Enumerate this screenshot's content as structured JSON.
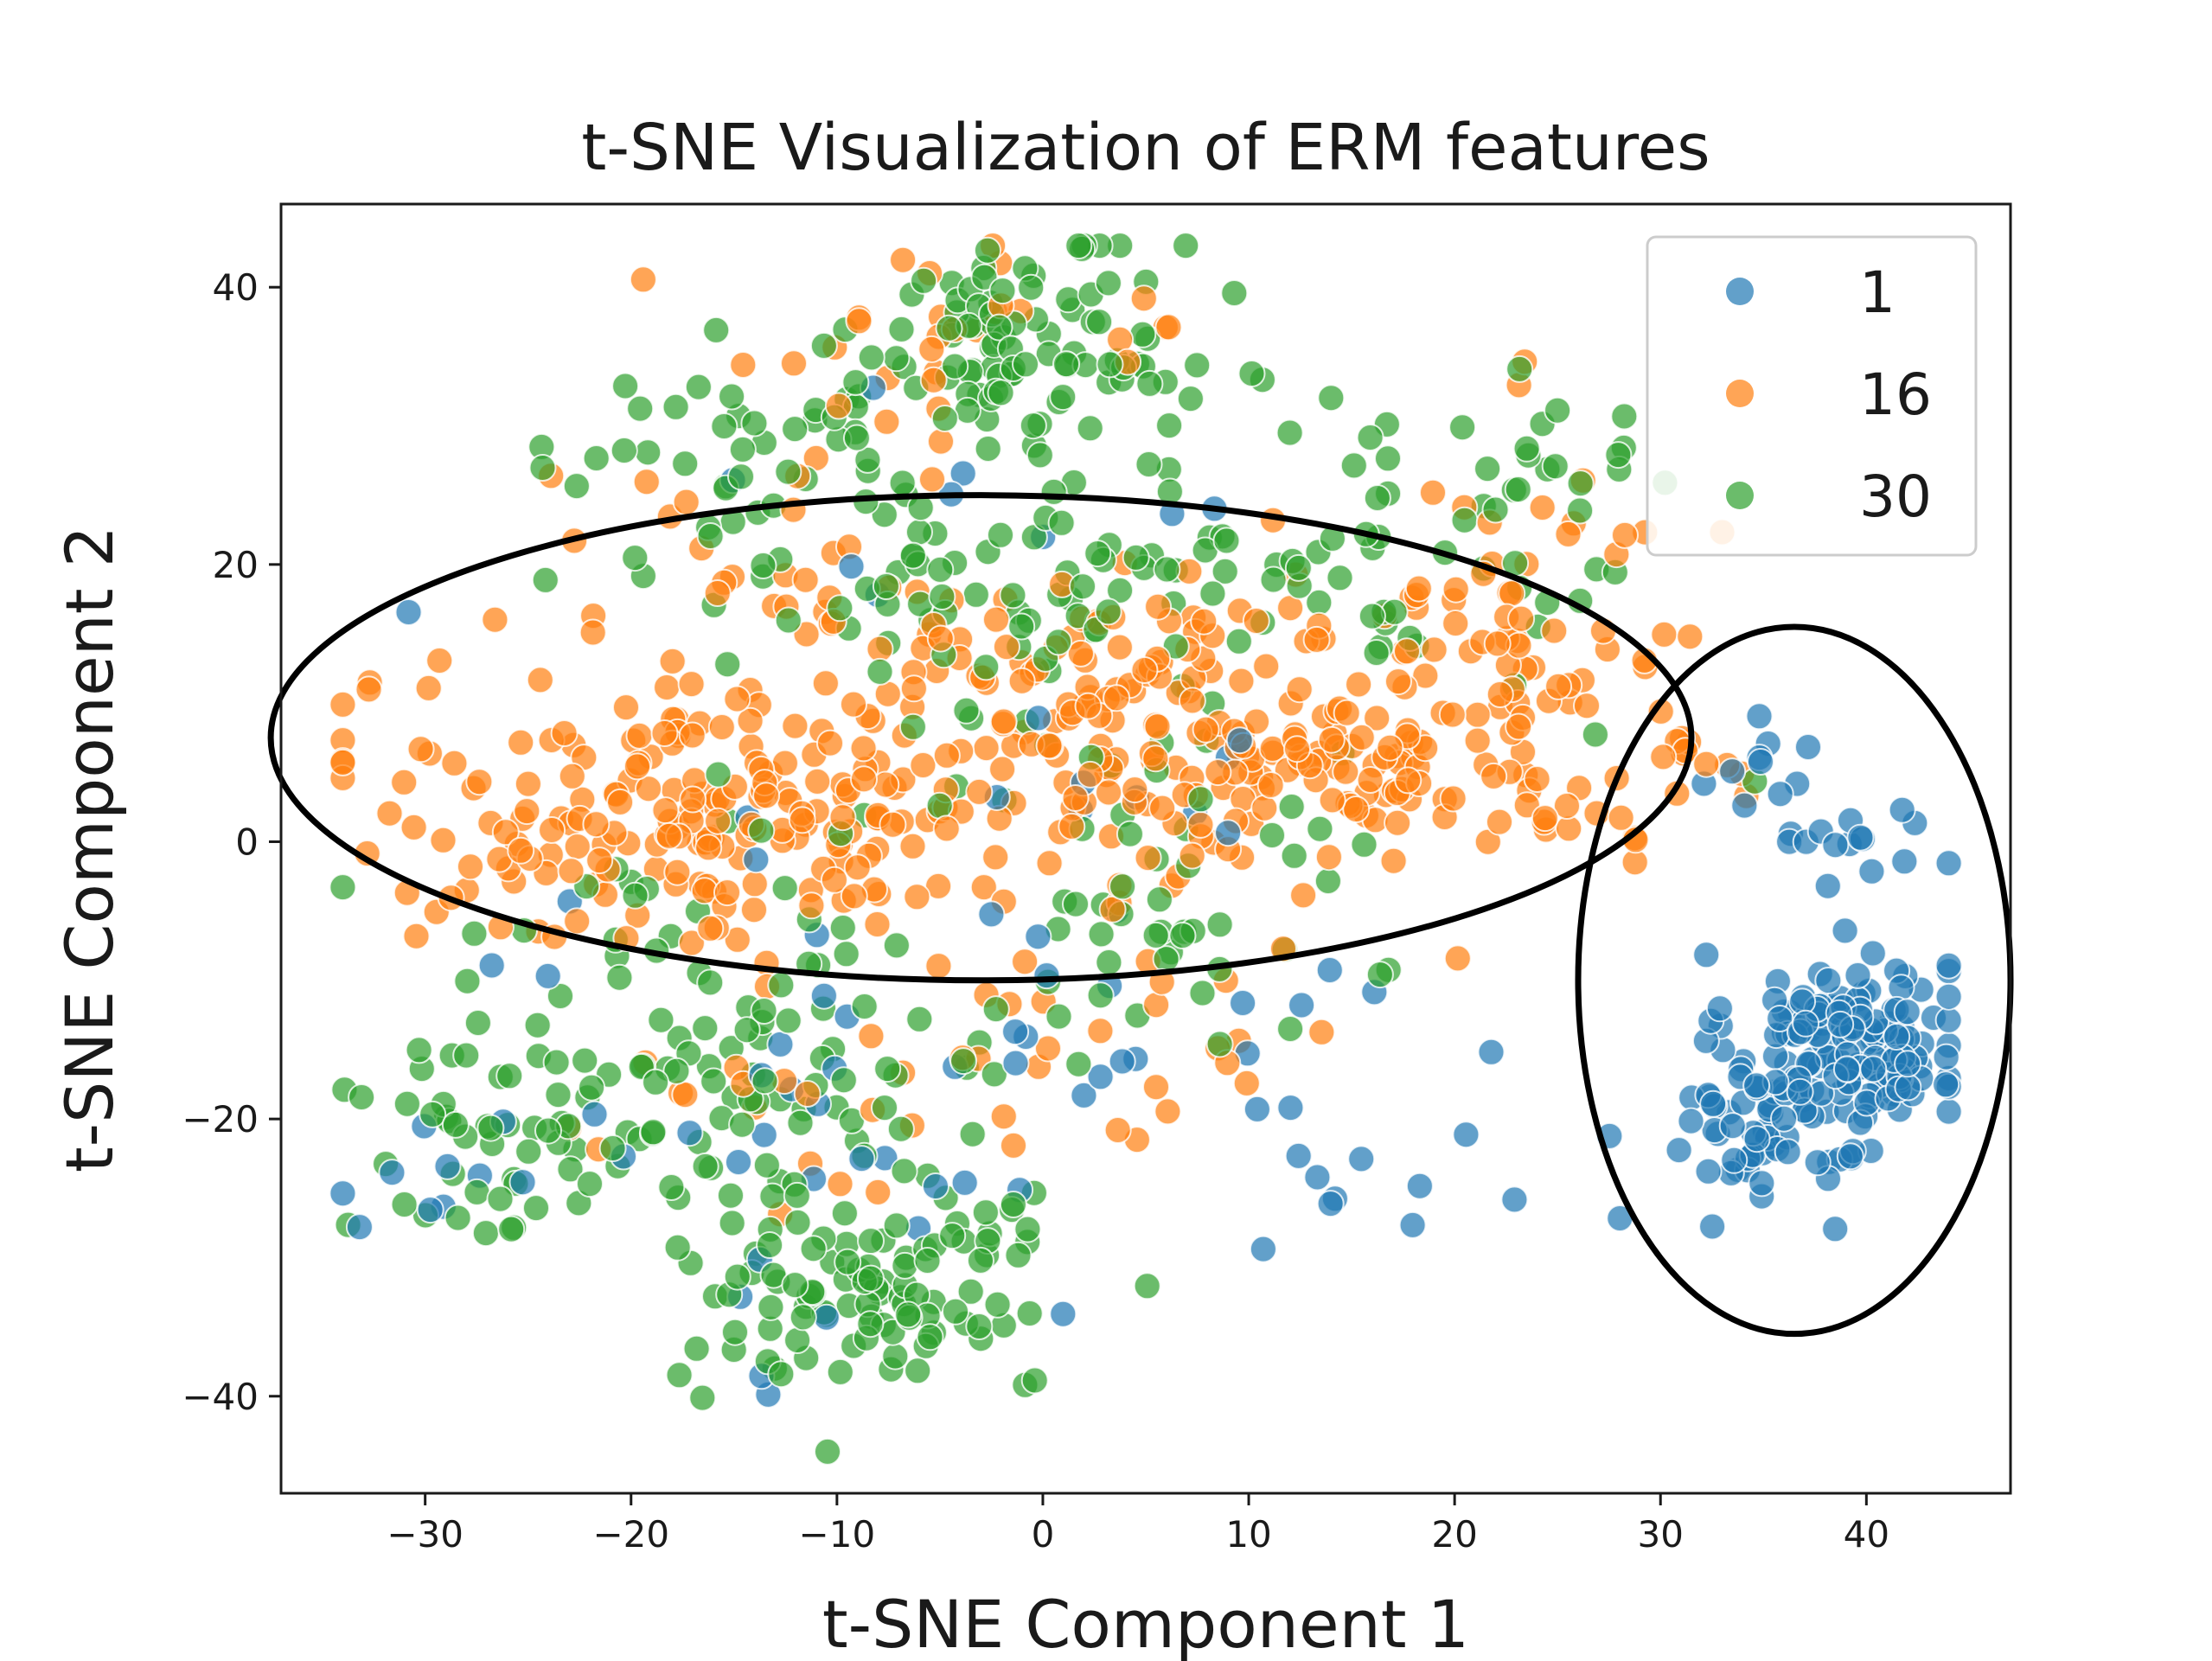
{
  "chart_data": {
    "type": "scatter",
    "title": "t-SNE Visualization of ERM features",
    "xlabel": "t-SNE Component 1",
    "ylabel": "t-SNE Component 2",
    "xlim": [
      -37,
      47
    ],
    "ylim": [
      -47,
      46
    ],
    "xticks": [
      -30,
      -20,
      -10,
      0,
      10,
      20,
      30,
      40
    ],
    "yticks": [
      -40,
      -20,
      0,
      20,
      40
    ],
    "xtick_labels": [
      "−30",
      "−20",
      "−10",
      "0",
      "10",
      "20",
      "30",
      "40"
    ],
    "ytick_labels": [
      "−40",
      "−20",
      "0",
      "20",
      "40"
    ],
    "grid": false,
    "legend": {
      "position": "top-right",
      "entries": [
        "1",
        "16",
        "30"
      ]
    },
    "colors": {
      "1": "#1f77b4",
      "16": "#ff7f0e",
      "30": "#2ca02c"
    },
    "marker_alpha": 0.7,
    "series": [
      {
        "name": "1",
        "clusters": [
          {
            "center": [
              39,
              -14
            ],
            "spread": [
              2.8,
              3.0
            ],
            "count": 130
          },
          {
            "center": [
              36,
              -20
            ],
            "spread": [
              3.0,
              3.0
            ],
            "count": 70
          },
          {
            "center": [
              40,
              0
            ],
            "spread": [
              2.5,
              1.5
            ],
            "count": 15
          },
          {
            "center": [
              35,
              5
            ],
            "spread": [
              1.5,
              1.5
            ],
            "count": 10
          },
          {
            "center": [
              3,
              -10
            ],
            "spread": [
              12,
              10
            ],
            "count": 45
          },
          {
            "center": [
              -10,
              -28
            ],
            "spread": [
              5,
              6
            ],
            "count": 15
          },
          {
            "center": [
              -28,
              -24
            ],
            "spread": [
              3,
              4
            ],
            "count": 12
          },
          {
            "center": [
              14,
              -24
            ],
            "spread": [
              6,
              4
            ],
            "count": 10
          },
          {
            "center": [
              -5,
              25
            ],
            "spread": [
              10,
              10
            ],
            "count": 10
          }
        ]
      },
      {
        "name": "16",
        "clusters": [
          {
            "center": [
              -18,
              2
            ],
            "spread": [
              8,
              5
            ],
            "count": 180
          },
          {
            "center": [
              0,
              8
            ],
            "spread": [
              8,
              6
            ],
            "count": 150
          },
          {
            "center": [
              13,
              8
            ],
            "spread": [
              6,
              5
            ],
            "count": 130
          },
          {
            "center": [
              24,
              14
            ],
            "spread": [
              4,
              8
            ],
            "count": 70
          },
          {
            "center": [
              -15,
              20
            ],
            "spread": [
              6,
              5
            ],
            "count": 20
          },
          {
            "center": [
              -5,
              36
            ],
            "spread": [
              7,
              4
            ],
            "count": 30
          },
          {
            "center": [
              5,
              -14
            ],
            "spread": [
              6,
              4
            ],
            "count": 25
          },
          {
            "center": [
              -12,
              -20
            ],
            "spread": [
              6,
              6
            ],
            "count": 20
          },
          {
            "center": [
              30,
              4
            ],
            "spread": [
              3,
              2
            ],
            "count": 12
          }
        ]
      },
      {
        "name": "30",
        "clusters": [
          {
            "center": [
              -1,
              36
            ],
            "spread": [
              4,
              4
            ],
            "count": 90
          },
          {
            "center": [
              -11,
              28
            ],
            "spread": [
              6,
              4
            ],
            "count": 60
          },
          {
            "center": [
              -3,
              18
            ],
            "spread": [
              6,
              4
            ],
            "count": 50
          },
          {
            "center": [
              15,
              22
            ],
            "spread": [
              8,
              5
            ],
            "count": 60
          },
          {
            "center": [
              -8,
              -32
            ],
            "spread": [
              5,
              4
            ],
            "count": 110
          },
          {
            "center": [
              -12,
              -18
            ],
            "spread": [
              5,
              6
            ],
            "count": 60
          },
          {
            "center": [
              -26,
              -22
            ],
            "spread": [
              4,
              4
            ],
            "count": 50
          },
          {
            "center": [
              -20,
              -10
            ],
            "spread": [
              5,
              5
            ],
            "count": 30
          },
          {
            "center": [
              6,
              -6
            ],
            "spread": [
              4,
              4
            ],
            "count": 30
          },
          {
            "center": [
              4,
              2
            ],
            "spread": [
              10,
              6
            ],
            "count": 40
          },
          {
            "center": [
              23,
              27
            ],
            "spread": [
              3,
              3
            ],
            "count": 15
          }
        ]
      }
    ],
    "annotations": [
      {
        "type": "ellipse",
        "center": [
          -3,
          7.5
        ],
        "radii": [
          34.5,
          17.5
        ]
      },
      {
        "type": "ellipse",
        "center": [
          36.5,
          -10
        ],
        "radii": [
          10.5,
          25.5
        ]
      }
    ]
  }
}
